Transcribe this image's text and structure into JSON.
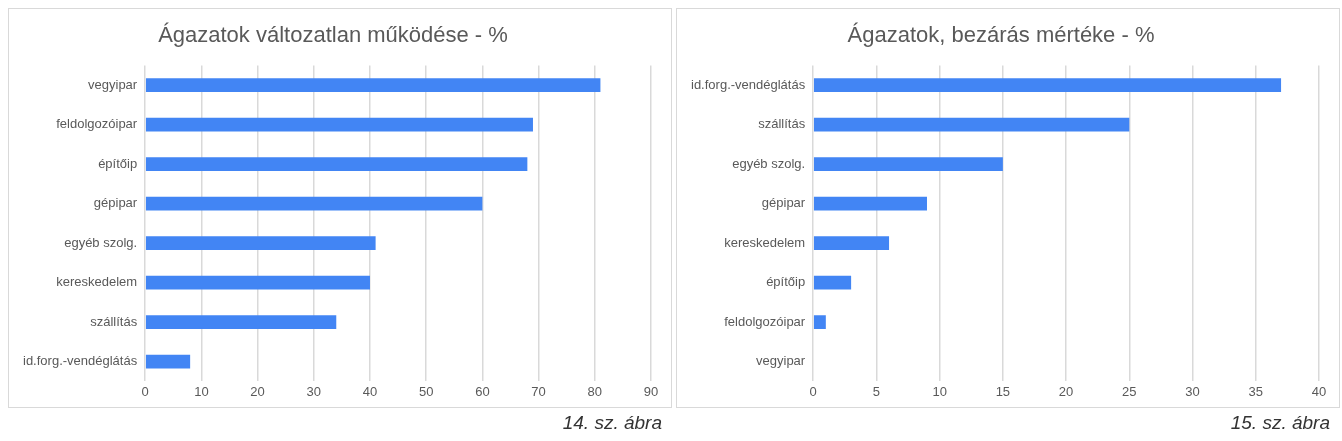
{
  "chart_data": [
    {
      "type": "bar",
      "orientation": "horizontal",
      "title": "Ágazatok változatlan működése - %",
      "categories": [
        "vegyipar",
        "feldolgozóipar",
        "építőip",
        "gépipar",
        "egyéb szolg.",
        "kereskedelem",
        "szállítás",
        "id.forg.-vendéglátás"
      ],
      "values": [
        81,
        69,
        68,
        60,
        41,
        40,
        34,
        8
      ],
      "color": "#4285f4",
      "xlim": [
        0,
        90
      ],
      "xticks": [
        0,
        10,
        20,
        30,
        40,
        50,
        60,
        70,
        80,
        90
      ],
      "grid": "x",
      "legend": false,
      "annotations": [
        "14. sz. ábra"
      ]
    },
    {
      "type": "bar",
      "orientation": "horizontal",
      "title": "Ágazatok, bezárás mértéke - %",
      "categories": [
        "id.forg.-vendéglátás",
        "szállítás",
        "egyéb szolg.",
        "gépipar",
        "kereskedelem",
        "építőip",
        "feldolgozóipar",
        "vegyipar"
      ],
      "values": [
        37,
        25,
        15,
        9,
        6,
        3,
        1,
        0
      ],
      "color": "#4285f4",
      "xlim": [
        0,
        40
      ],
      "xticks": [
        0,
        5,
        10,
        15,
        20,
        25,
        30,
        35,
        40
      ],
      "grid": "x",
      "legend": false,
      "annotations": [
        "15. sz. ábra"
      ]
    }
  ]
}
